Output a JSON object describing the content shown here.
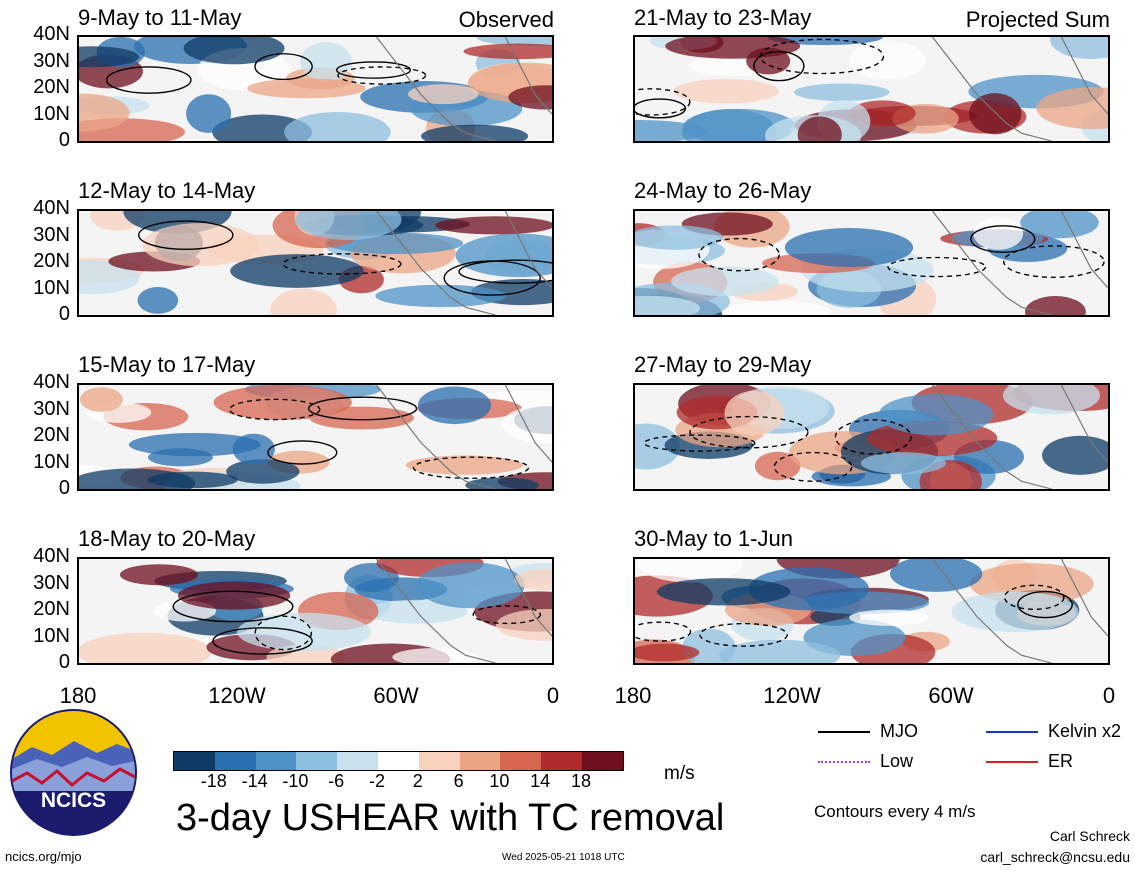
{
  "panels_left": [
    {
      "title": "9-May to 11-May",
      "tag": "Observed"
    },
    {
      "title": "12-May to 14-May",
      "tag": ""
    },
    {
      "title": "15-May to 17-May",
      "tag": ""
    },
    {
      "title": "18-May to 20-May",
      "tag": ""
    }
  ],
  "panels_right": [
    {
      "title": "21-May to 23-May",
      "tag": "Projected Sum"
    },
    {
      "title": "24-May to 26-May",
      "tag": ""
    },
    {
      "title": "27-May to 29-May",
      "tag": ""
    },
    {
      "title": "30-May to 1-Jun",
      "tag": ""
    }
  ],
  "lat_labels": [
    "40N",
    "30N",
    "20N",
    "10N",
    "0"
  ],
  "lon_labels": [
    "180",
    "120W",
    "60W",
    "0"
  ],
  "colorbar": {
    "colors": [
      "#0d3b66",
      "#2a6fb0",
      "#4d93c7",
      "#8dbfdf",
      "#c7e1ef",
      "#ffffff",
      "#f8d2bd",
      "#eba585",
      "#d76650",
      "#b02b2b",
      "#6e0f1d"
    ],
    "labels": [
      "-18",
      "-14",
      "-10",
      "-6",
      "-2",
      "2",
      "6",
      "10",
      "14",
      "18"
    ],
    "units": "m/s"
  },
  "legend": {
    "items": [
      {
        "label": "MJO",
        "color": "#000000"
      },
      {
        "label": "Kelvin x2",
        "color": "#1b2fd6"
      },
      {
        "label": "Low",
        "color": "#9b40e0"
      },
      {
        "label": "ER",
        "color": "#d42020"
      }
    ],
    "contour_note": "Contours every 4 m/s"
  },
  "logo_text": "NCICS",
  "main_title": "3-day USHEAR with TC removal",
  "footer": {
    "url": "ncics.org/mjo",
    "timestamp": "Wed 2025-05-21 1018 UTC",
    "author": "Carl Schreck",
    "email": "carl_schreck@ncsu.edu"
  }
}
